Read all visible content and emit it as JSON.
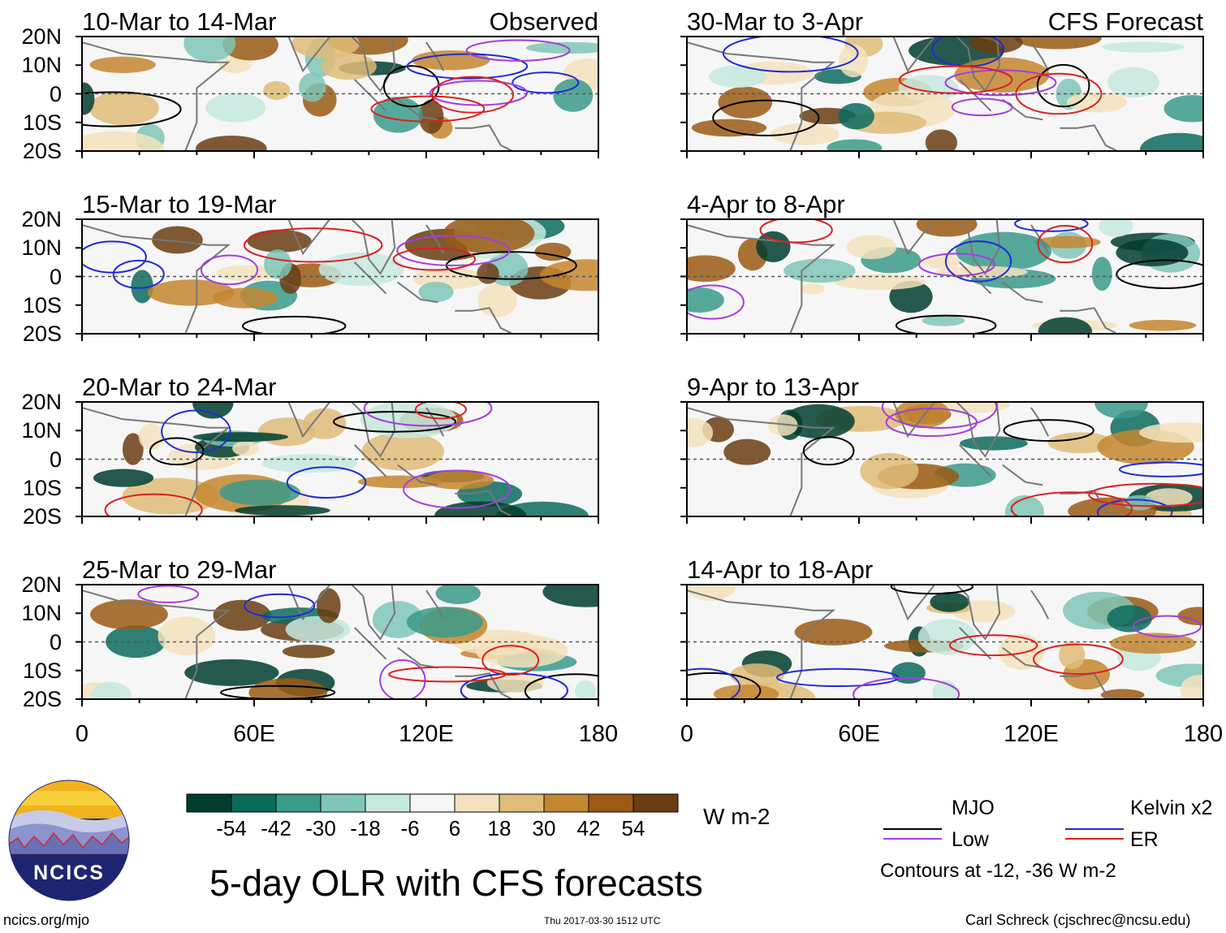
{
  "main_title": "5-day OLR with CFS forecasts",
  "observed_label": "Observed",
  "forecast_label": "CFS Forecast",
  "colorbar": {
    "unit": "W m-2",
    "ticks": [
      "-54",
      "-42",
      "-30",
      "-18",
      "-6",
      "6",
      "18",
      "30",
      "42",
      "54"
    ],
    "colors": [
      "#003d2f",
      "#0a6b5d",
      "#3a9a8b",
      "#7fc6b6",
      "#c6e9df",
      "#f6f6f6",
      "#f3e2bd",
      "#dfbc78",
      "#c4862f",
      "#9a5a14",
      "#6a3d12"
    ]
  },
  "legend": {
    "items": [
      {
        "label": "MJO",
        "color": "#000000"
      },
      {
        "label": "Kelvin x2",
        "color": "#1f2bd6"
      },
      {
        "label": "Low",
        "color": "#a43ddc"
      },
      {
        "label": "ER",
        "color": "#dd1f1f"
      }
    ],
    "note": "Contours at -12, -36 W m-2"
  },
  "footer": {
    "url": "ncics.org/mjo",
    "timestamp": "Thu 2017-03-30 1512 UTC",
    "credit": "Carl Schreck (cjschrec@ncsu.edu)",
    "logo_text": "NCICS"
  },
  "chart_data": [
    {
      "type": "heatmap",
      "title": "10-Mar to 14-Mar",
      "tag": "Observed",
      "xlim": [
        0,
        180
      ],
      "ylim": [
        -20,
        20
      ],
      "xticks": [
        "0",
        "60E",
        "120E",
        "180"
      ],
      "yticks": [
        "20N",
        "10N",
        "0",
        "10S",
        "20S"
      ]
    },
    {
      "type": "heatmap",
      "title": "15-Mar to 19-Mar",
      "xlim": [
        0,
        180
      ],
      "ylim": [
        -20,
        20
      ],
      "xticks": [
        "0",
        "60E",
        "120E",
        "180"
      ],
      "yticks": [
        "20N",
        "10N",
        "0",
        "10S",
        "20S"
      ]
    },
    {
      "type": "heatmap",
      "title": "20-Mar to 24-Mar",
      "xlim": [
        0,
        180
      ],
      "ylim": [
        -20,
        20
      ],
      "xticks": [
        "0",
        "60E",
        "120E",
        "180"
      ],
      "yticks": [
        "20N",
        "10N",
        "0",
        "10S",
        "20S"
      ]
    },
    {
      "type": "heatmap",
      "title": "25-Mar to 29-Mar",
      "xlim": [
        0,
        180
      ],
      "ylim": [
        -20,
        20
      ],
      "xticks": [
        "0",
        "60E",
        "120E",
        "180"
      ],
      "yticks": [
        "20N",
        "10N",
        "0",
        "10S",
        "20S"
      ]
    },
    {
      "type": "heatmap",
      "title": "30-Mar to 3-Apr",
      "tag": "CFS Forecast",
      "xlim": [
        0,
        180
      ],
      "ylim": [
        -20,
        20
      ],
      "xticks": [
        "0",
        "60E",
        "120E",
        "180"
      ]
    },
    {
      "type": "heatmap",
      "title": "4-Apr to 8-Apr",
      "xlim": [
        0,
        180
      ],
      "ylim": [
        -20,
        20
      ],
      "xticks": [
        "0",
        "60E",
        "120E",
        "180"
      ]
    },
    {
      "type": "heatmap",
      "title": "9-Apr to 13-Apr",
      "xlim": [
        0,
        180
      ],
      "ylim": [
        -20,
        20
      ],
      "xticks": [
        "0",
        "60E",
        "120E",
        "180"
      ]
    },
    {
      "type": "heatmap",
      "title": "14-Apr to 18-Apr",
      "xlim": [
        0,
        180
      ],
      "ylim": [
        -20,
        20
      ],
      "xticks": [
        "0",
        "60E",
        "120E",
        "180"
      ]
    }
  ]
}
